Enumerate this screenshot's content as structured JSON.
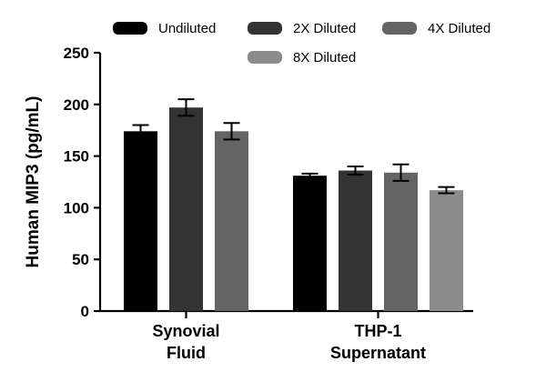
{
  "chart_data": {
    "type": "bar",
    "title": "",
    "xlabel": "",
    "ylabel": "Human MIP3 (pg/mL)",
    "ylim": [
      0,
      250
    ],
    "yticks": [
      "0",
      "50",
      "100",
      "150",
      "200",
      "250"
    ],
    "categories": [
      [
        "Synovial",
        "Fluid"
      ],
      [
        "THP-1",
        "Supernatant"
      ]
    ],
    "legend_position": "top",
    "grid": false,
    "series": [
      {
        "name": "Undiluted",
        "color": "#000000",
        "values": [
          174,
          131
        ],
        "error": [
          6,
          2
        ]
      },
      {
        "name": "2X Diluted",
        "color": "#333333",
        "values": [
          197,
          136
        ],
        "error": [
          8,
          4
        ]
      },
      {
        "name": "4X Diluted",
        "color": "#646464",
        "values": [
          174,
          134
        ],
        "error": [
          8,
          8
        ]
      },
      {
        "name": "8X Diluted",
        "color": "#8c8c8c",
        "values": [
          null,
          117
        ],
        "error": [
          null,
          3
        ]
      }
    ]
  }
}
